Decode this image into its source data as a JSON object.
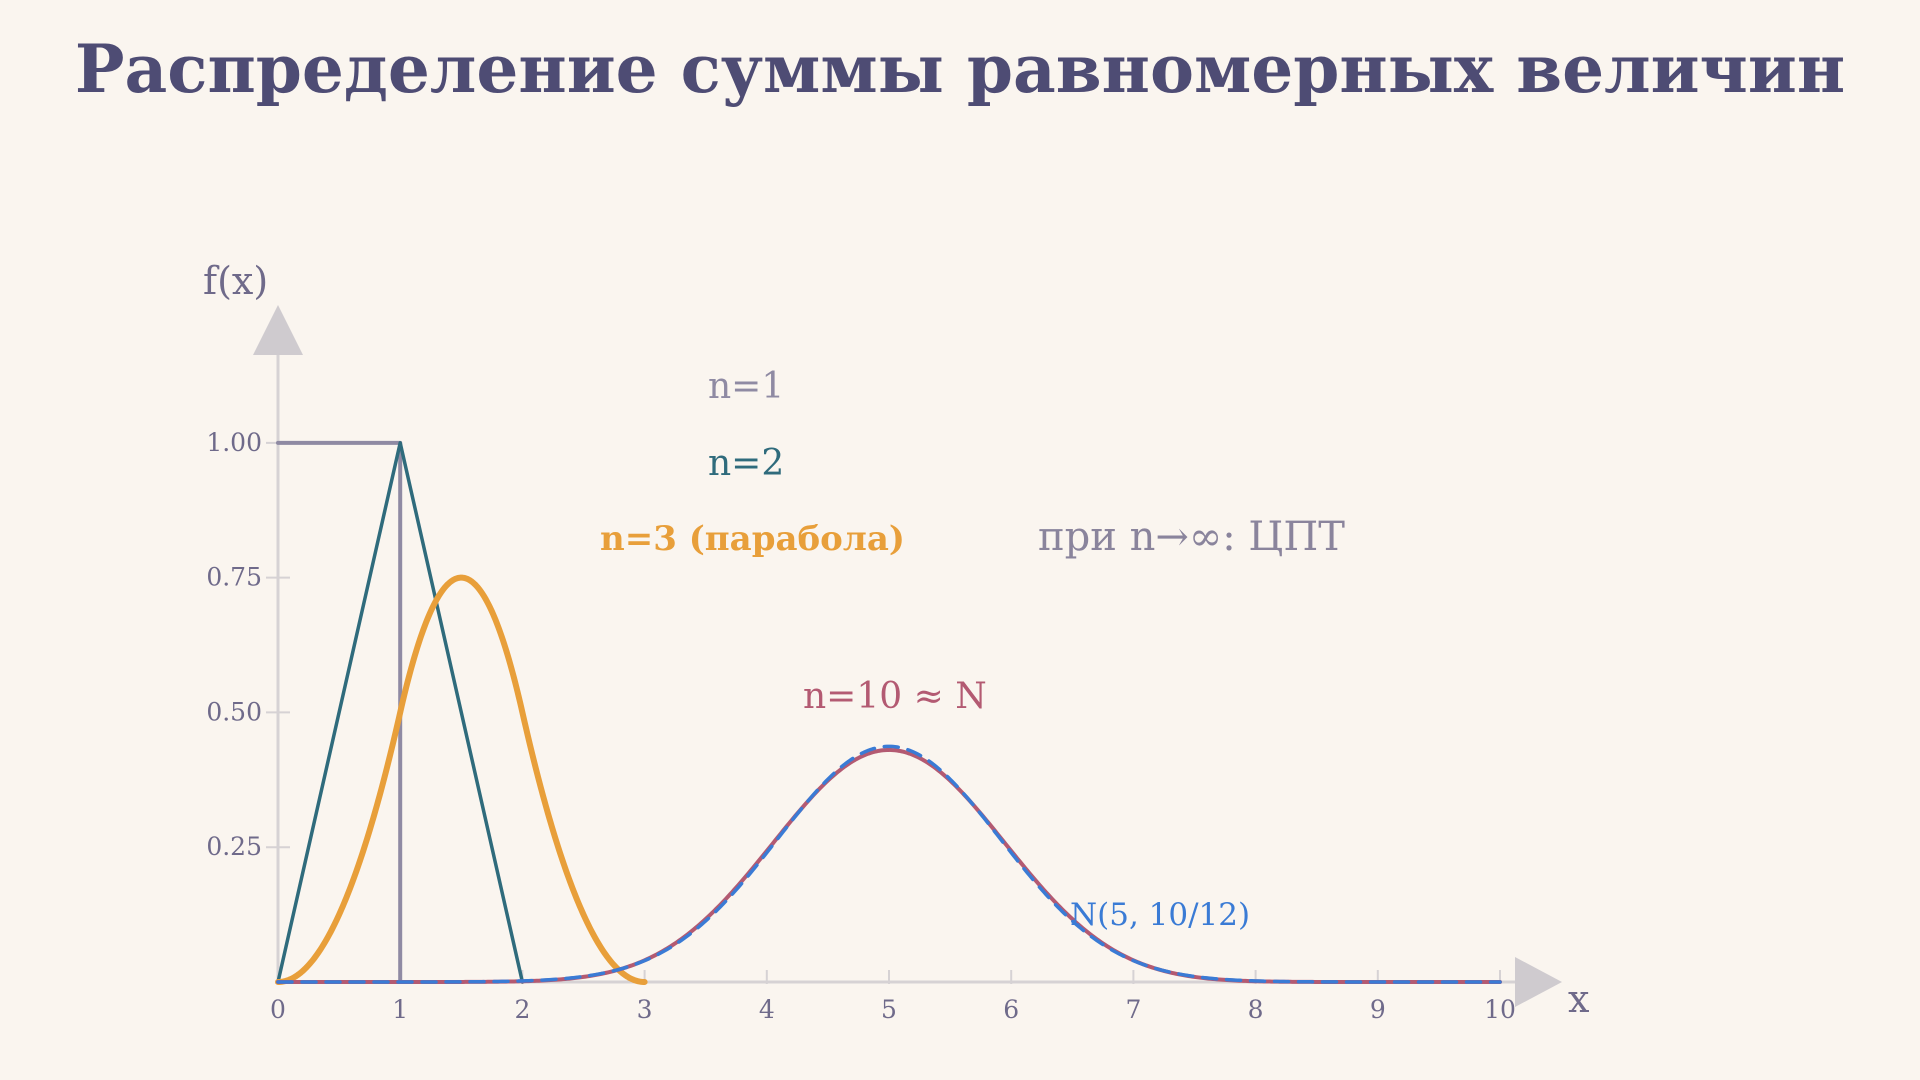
{
  "title": "Распределение суммы равномерных величин",
  "chart_data": {
    "type": "line",
    "title": "Распределение суммы равномерных величин",
    "xlabel": "x",
    "ylabel": "f(x)",
    "xlim": [
      0,
      10
    ],
    "ylim": [
      0,
      1.2
    ],
    "x_ticks": [
      "0",
      "1",
      "2",
      "3",
      "4",
      "5",
      "6",
      "7",
      "8",
      "9",
      "10"
    ],
    "y_ticks": [
      "0.25",
      "0.50",
      "0.75",
      "1.00"
    ],
    "series": [
      {
        "name": "n=1",
        "n": 1,
        "color": "#8f8aa3"
      },
      {
        "name": "n=2",
        "n": 2,
        "color": "#2f6b7c"
      },
      {
        "name": "n=3 (парабола)",
        "n": 3,
        "color": "#e89f3a"
      },
      {
        "name": "n=10 ≈ N",
        "n": 10,
        "color": "#b35a72"
      },
      {
        "name": "N(5, 10/12)",
        "mean": 5,
        "variance": 0.8333,
        "color": "#3a7bd5",
        "dashed": true
      }
    ],
    "annotations": [
      {
        "text": "при n→∞: ЦПТ",
        "color": "#8a849c"
      }
    ],
    "grid": false,
    "legend": "inline"
  }
}
